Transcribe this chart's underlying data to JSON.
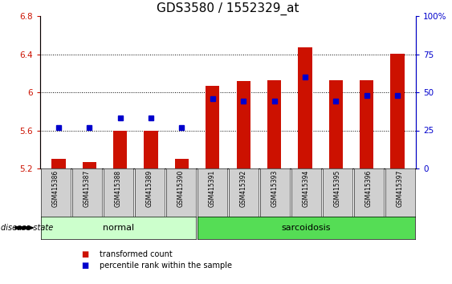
{
  "title": "GDS3580 / 1552329_at",
  "samples": [
    "GSM415386",
    "GSM415387",
    "GSM415388",
    "GSM415389",
    "GSM415390",
    "GSM415391",
    "GSM415392",
    "GSM415393",
    "GSM415394",
    "GSM415395",
    "GSM415396",
    "GSM415397"
  ],
  "groups": [
    "normal",
    "normal",
    "normal",
    "normal",
    "normal",
    "sarcoidosis",
    "sarcoidosis",
    "sarcoidosis",
    "sarcoidosis",
    "sarcoidosis",
    "sarcoidosis",
    "sarcoidosis"
  ],
  "transformed_count": [
    5.3,
    5.27,
    5.6,
    5.6,
    5.3,
    6.07,
    6.12,
    6.13,
    6.47,
    6.13,
    6.13,
    6.4
  ],
  "percentile_rank": [
    27,
    27,
    33,
    33,
    27,
    46,
    44,
    44,
    60,
    44,
    48,
    48
  ],
  "ymin": 5.2,
  "ymax": 6.8,
  "yticks": [
    5.2,
    5.6,
    6.0,
    6.4,
    6.8
  ],
  "right_yticks": [
    0,
    25,
    50,
    75,
    100
  ],
  "bar_color": "#cc1100",
  "dot_color": "#0000cc",
  "normal_color": "#ccffcc",
  "sarcoidosis_color": "#55dd55",
  "sample_box_color": "#d0d0d0",
  "axis_color_left": "#cc1100",
  "axis_color_right": "#0000cc",
  "title_fontsize": 11,
  "tick_fontsize": 7.5,
  "sample_fontsize": 5.5,
  "group_fontsize": 8,
  "legend_fontsize": 7
}
